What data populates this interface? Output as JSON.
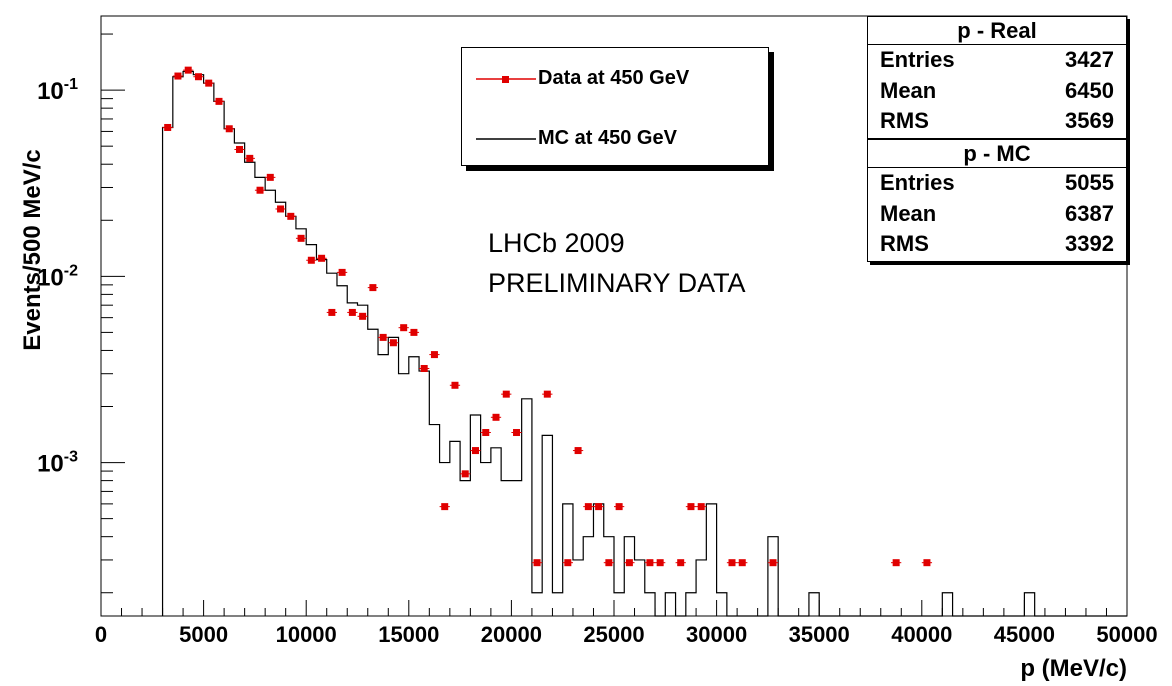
{
  "chart_data": {
    "type": "histogram",
    "x_label": "p (MeV/c)",
    "y_label": "Events/500 MeV/c",
    "x_range": [
      0,
      50000
    ],
    "y_scale": "log",
    "y_range": [
      0.00015,
      0.25
    ],
    "bin_width": 500,
    "x_tick_labels": [
      "0",
      "5000",
      "10000",
      "15000",
      "20000",
      "25000",
      "30000",
      "35000",
      "40000",
      "45000",
      "50000"
    ],
    "y_tick_labels": [
      {
        "base": "10",
        "exp": "-1",
        "value": 0.1
      },
      {
        "base": "10",
        "exp": "-2",
        "value": 0.01
      },
      {
        "base": "10",
        "exp": "-3",
        "value": 0.001
      }
    ],
    "annotations": [
      "LHCb 2009",
      "PRELIMINARY DATA"
    ],
    "legend": [
      {
        "label": "Data at 450 GeV",
        "style": "red-markers-with-errors",
        "color": "#e00000"
      },
      {
        "label": "MC at 450 GeV",
        "style": "black-step-line",
        "color": "#000000"
      }
    ],
    "series": [
      {
        "name": "Data at 450 GeV",
        "color": "#e00000",
        "points": [
          [
            3250,
            0.063
          ],
          [
            3750,
            0.119
          ],
          [
            4250,
            0.128
          ],
          [
            4750,
            0.118
          ],
          [
            5250,
            0.109
          ],
          [
            5750,
            0.087
          ],
          [
            6250,
            0.062
          ],
          [
            6750,
            0.048
          ],
          [
            7250,
            0.043
          ],
          [
            7750,
            0.029
          ],
          [
            8250,
            0.034
          ],
          [
            8750,
            0.023
          ],
          [
            9250,
            0.021
          ],
          [
            9750,
            0.016
          ],
          [
            10250,
            0.0122
          ],
          [
            10750,
            0.0125
          ],
          [
            11250,
            0.0064
          ],
          [
            11750,
            0.0105
          ],
          [
            12250,
            0.0064
          ],
          [
            12750,
            0.0061
          ],
          [
            13250,
            0.0087
          ],
          [
            13750,
            0.0047
          ],
          [
            14250,
            0.0044
          ],
          [
            14750,
            0.0053
          ],
          [
            15250,
            0.005
          ],
          [
            15750,
            0.0032
          ],
          [
            16250,
            0.0038
          ],
          [
            16750,
            0.00058
          ],
          [
            17250,
            0.0026
          ],
          [
            17750,
            0.00087
          ],
          [
            18250,
            0.00116
          ],
          [
            18750,
            0.00145
          ],
          [
            19250,
            0.00175
          ],
          [
            19750,
            0.00233
          ],
          [
            20250,
            0.00145
          ],
          [
            21250,
            0.00029
          ],
          [
            21750,
            0.00233
          ],
          [
            22750,
            0.00029
          ],
          [
            23250,
            0.00116
          ],
          [
            23750,
            0.00058
          ],
          [
            24250,
            0.00058
          ],
          [
            24750,
            0.00029
          ],
          [
            25250,
            0.00058
          ],
          [
            25750,
            0.00029
          ],
          [
            26750,
            0.00029
          ],
          [
            27250,
            0.00029
          ],
          [
            28250,
            0.00029
          ],
          [
            28750,
            0.00058
          ],
          [
            29250,
            0.00058
          ],
          [
            30750,
            0.00029
          ],
          [
            31250,
            0.00029
          ],
          [
            32750,
            0.00029
          ],
          [
            38750,
            0.00029
          ],
          [
            40250,
            0.00029
          ]
        ]
      },
      {
        "name": "MC at 450 GeV",
        "color": "#000000",
        "bins": [
          [
            3000,
            3500,
            0.063
          ],
          [
            3500,
            4000,
            0.118
          ],
          [
            4000,
            4500,
            0.126
          ],
          [
            4500,
            5000,
            0.121
          ],
          [
            5000,
            5500,
            0.109
          ],
          [
            5500,
            6000,
            0.087
          ],
          [
            6000,
            6500,
            0.062
          ],
          [
            6500,
            7000,
            0.052
          ],
          [
            7000,
            7500,
            0.041
          ],
          [
            7500,
            8000,
            0.034
          ],
          [
            8000,
            8500,
            0.029
          ],
          [
            8500,
            9000,
            0.025
          ],
          [
            9000,
            9500,
            0.021
          ],
          [
            9500,
            10000,
            0.018
          ],
          [
            10000,
            10500,
            0.0148
          ],
          [
            10500,
            11000,
            0.0123
          ],
          [
            11000,
            11500,
            0.0104
          ],
          [
            11500,
            12000,
            0.0089
          ],
          [
            12000,
            12500,
            0.0072
          ],
          [
            12500,
            13000,
            0.007
          ],
          [
            13000,
            13500,
            0.0052
          ],
          [
            13500,
            14000,
            0.0038
          ],
          [
            14000,
            14500,
            0.0047
          ],
          [
            14500,
            15000,
            0.003
          ],
          [
            15000,
            15500,
            0.0037
          ],
          [
            15500,
            16000,
            0.0031
          ],
          [
            16000,
            16500,
            0.0016
          ],
          [
            16500,
            17000,
            0.001
          ],
          [
            17000,
            17500,
            0.0013
          ],
          [
            17500,
            18000,
            0.0008
          ],
          [
            18000,
            18500,
            0.0018
          ],
          [
            18500,
            19000,
            0.001
          ],
          [
            19000,
            19500,
            0.0012
          ],
          [
            19500,
            20000,
            0.0008
          ],
          [
            20000,
            20500,
            0.0008
          ],
          [
            20500,
            21000,
            0.0022
          ],
          [
            21000,
            21500,
            0.0002
          ],
          [
            21500,
            22000,
            0.0014
          ],
          [
            22000,
            22500,
            0.0002
          ],
          [
            22500,
            23000,
            0.0006
          ],
          [
            23000,
            23500,
            0.0003
          ],
          [
            23500,
            24000,
            0.0004
          ],
          [
            24000,
            24500,
            0.0006
          ],
          [
            24500,
            25000,
            0.0004
          ],
          [
            25000,
            25500,
            0.0002
          ],
          [
            25500,
            26000,
            0.0004
          ],
          [
            26000,
            26500,
            0.0003
          ],
          [
            26500,
            27000,
            0.0002
          ],
          [
            27000,
            27500,
            0.00015
          ],
          [
            27500,
            28000,
            0.0002
          ],
          [
            28000,
            28500,
            0.00015
          ],
          [
            28500,
            29000,
            0.0002
          ],
          [
            29000,
            29500,
            0.0003
          ],
          [
            29500,
            30000,
            0.0006
          ],
          [
            30000,
            30500,
            0.0002
          ],
          [
            30500,
            31000,
            0.00015
          ],
          [
            31000,
            32500,
            0.00015
          ],
          [
            32500,
            33000,
            0.0004
          ],
          [
            33000,
            34500,
            0.00015
          ],
          [
            34500,
            35000,
            0.0002
          ],
          [
            35000,
            41000,
            0.00015
          ],
          [
            41000,
            41500,
            0.0002
          ],
          [
            41500,
            45000,
            0.00015
          ],
          [
            45000,
            45500,
            0.0002
          ],
          [
            45500,
            50000,
            0.00015
          ]
        ]
      }
    ]
  },
  "stats": {
    "real": {
      "title": "p - Real",
      "rows": [
        [
          "Entries",
          "3427"
        ],
        [
          "Mean",
          "6450"
        ],
        [
          "RMS",
          "3569"
        ]
      ]
    },
    "mc": {
      "title": "p - MC",
      "rows": [
        [
          "Entries",
          "5055"
        ],
        [
          "Mean",
          "6387"
        ],
        [
          "RMS",
          "3392"
        ]
      ]
    }
  }
}
